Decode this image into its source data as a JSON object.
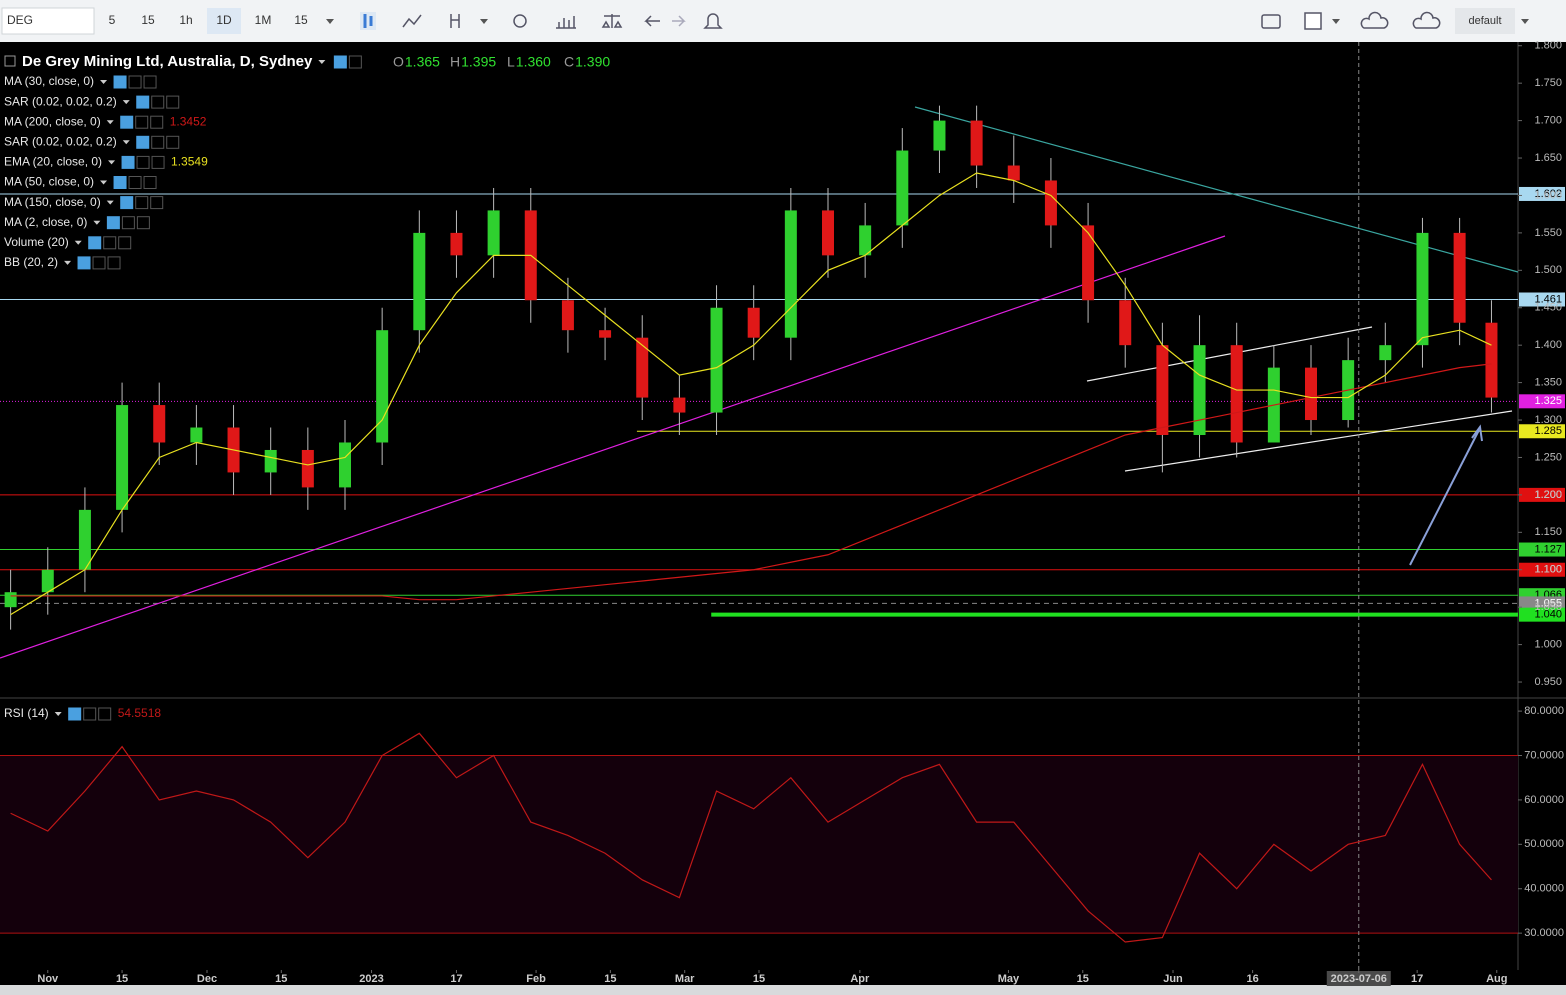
{
  "toolbar": {
    "symbol": "DEG",
    "intervals": [
      "5",
      "15",
      "1h",
      "1D",
      "1M",
      "15"
    ],
    "active_interval": 3,
    "layout": "default"
  },
  "chart_data": [
    {
      "type": "candlestick",
      "title": "De Grey Mining Ltd, Australia, D, Sydney",
      "ohlc": [
        {
          "key": "O",
          "value": "1.365"
        },
        {
          "key": "H",
          "value": "1.395"
        },
        {
          "key": "L",
          "value": "1.360"
        },
        {
          "key": "C",
          "value": "1.390"
        }
      ],
      "up_color": "#2fd02f",
      "down_color": "#e01818",
      "xlim": [
        "2022-10-23",
        "2023-08-05"
      ],
      "xticks": [
        {
          "value": "2022-11-01",
          "label": "Nov"
        },
        {
          "value": "2022-11-15",
          "label": "15"
        },
        {
          "value": "2022-12-01",
          "label": "Dec"
        },
        {
          "value": "2022-12-15",
          "label": "15"
        },
        {
          "value": "2023-01-01",
          "label": "2023"
        },
        {
          "value": "2023-01-17",
          "label": "17"
        },
        {
          "value": "2023-02-01",
          "label": "Feb"
        },
        {
          "value": "2023-02-15",
          "label": "15"
        },
        {
          "value": "2023-03-01",
          "label": "Mar"
        },
        {
          "value": "2023-03-15",
          "label": "15"
        },
        {
          "value": "2023-04-03",
          "label": "Apr"
        },
        {
          "value": "2023-05-01",
          "label": "May"
        },
        {
          "value": "2023-05-15",
          "label": "15"
        },
        {
          "value": "2023-06-01",
          "label": "Jun"
        },
        {
          "value": "2023-06-16",
          "label": "16"
        },
        {
          "value": "2023-07-06",
          "label": "2023-07-06",
          "highlight": true
        },
        {
          "value": "2023-07-17",
          "label": "17"
        },
        {
          "value": "2023-08-01",
          "label": "Aug"
        }
      ],
      "ylim": [
        0.93,
        1.805
      ],
      "yticks": [
        {
          "value": 1.8,
          "label": "1.800"
        },
        {
          "value": 1.75,
          "label": "1.750"
        },
        {
          "value": 1.7,
          "label": "1.700"
        },
        {
          "value": 1.65,
          "label": "1.650"
        },
        {
          "value": 1.6,
          "label": "1.600"
        },
        {
          "value": 1.55,
          "label": "1.550"
        },
        {
          "value": 1.5,
          "label": "1.500"
        },
        {
          "value": 1.45,
          "label": "1.450"
        },
        {
          "value": 1.4,
          "label": "1.400"
        },
        {
          "value": 1.35,
          "label": "1.350"
        },
        {
          "value": 1.3,
          "label": "1.300"
        },
        {
          "value": 1.25,
          "label": "1.250"
        },
        {
          "value": 1.2,
          "label": "1.200"
        },
        {
          "value": 1.15,
          "label": "1.150"
        },
        {
          "value": 1.1,
          "label": "1.100"
        },
        {
          "value": 1.05,
          "label": "1.050"
        },
        {
          "value": 1.0,
          "label": "1.000"
        },
        {
          "value": 0.95,
          "label": "0.950"
        }
      ],
      "levels": [
        {
          "value": 1.602,
          "label": "1.602",
          "color": "#a8d8f0",
          "label_color": "#000"
        },
        {
          "value": 1.461,
          "label": "1.461",
          "color": "#a8d8f0",
          "label_color": "#000"
        },
        {
          "value": 1.325,
          "label": "1.325",
          "color": "#e020e0",
          "label_color": "#fff",
          "style": "dotted"
        },
        {
          "value": 1.285,
          "label": "1.285",
          "color": "#e8e820",
          "label_color": "#000",
          "from": "2023-02-20"
        },
        {
          "value": 1.2,
          "label": "1.200",
          "color": "#e01010",
          "label_color": "#fff"
        },
        {
          "value": 1.127,
          "label": "1.127",
          "color": "#30d030",
          "label_color": "#000"
        },
        {
          "value": 1.1,
          "label": "1.100",
          "color": "#e01010",
          "label_color": "#fff"
        },
        {
          "value": 1.066,
          "label": "1.066",
          "color": "#30d030",
          "label_color": "#000"
        },
        {
          "value": 1.055,
          "label": "1.055",
          "color": "#888",
          "label_color": "#fff",
          "style": "dashed"
        },
        {
          "value": 1.04,
          "label": "1.040",
          "color": "#20e020",
          "label_color": "#000",
          "from": "2023-03-06",
          "width": 4
        }
      ],
      "x": [
        "2022-10-25",
        "2022-11-01",
        "2022-11-08",
        "2022-11-15",
        "2022-11-22",
        "2022-11-29",
        "2022-12-06",
        "2022-12-13",
        "2022-12-20",
        "2022-12-27",
        "2023-01-03",
        "2023-01-10",
        "2023-01-17",
        "2023-01-24",
        "2023-01-31",
        "2023-02-07",
        "2023-02-14",
        "2023-02-21",
        "2023-02-28",
        "2023-03-07",
        "2023-03-14",
        "2023-03-21",
        "2023-03-28",
        "2023-04-04",
        "2023-04-11",
        "2023-04-18",
        "2023-04-25",
        "2023-05-02",
        "2023-05-09",
        "2023-05-16",
        "2023-05-23",
        "2023-05-30",
        "2023-06-06",
        "2023-06-13",
        "2023-06-20",
        "2023-06-27",
        "2023-07-04",
        "2023-07-11",
        "2023-07-18",
        "2023-07-25",
        "2023-07-31"
      ],
      "open": [
        1.05,
        1.07,
        1.1,
        1.18,
        1.32,
        1.27,
        1.29,
        1.23,
        1.26,
        1.21,
        1.27,
        1.42,
        1.55,
        1.52,
        1.58,
        1.46,
        1.42,
        1.41,
        1.33,
        1.31,
        1.45,
        1.41,
        1.58,
        1.52,
        1.56,
        1.66,
        1.7,
        1.64,
        1.62,
        1.56,
        1.46,
        1.4,
        1.28,
        1.4,
        1.27,
        1.37,
        1.3,
        1.38,
        1.4,
        1.55,
        1.43
      ],
      "high": [
        1.1,
        1.13,
        1.21,
        1.35,
        1.35,
        1.32,
        1.32,
        1.29,
        1.29,
        1.3,
        1.45,
        1.58,
        1.58,
        1.61,
        1.61,
        1.49,
        1.45,
        1.44,
        1.36,
        1.48,
        1.48,
        1.61,
        1.61,
        1.59,
        1.69,
        1.72,
        1.72,
        1.68,
        1.65,
        1.59,
        1.49,
        1.43,
        1.44,
        1.43,
        1.4,
        1.4,
        1.41,
        1.43,
        1.57,
        1.57,
        1.46
      ],
      "low": [
        1.02,
        1.04,
        1.07,
        1.15,
        1.24,
        1.24,
        1.2,
        1.2,
        1.18,
        1.18,
        1.24,
        1.39,
        1.49,
        1.49,
        1.43,
        1.39,
        1.38,
        1.3,
        1.28,
        1.28,
        1.38,
        1.38,
        1.49,
        1.49,
        1.53,
        1.63,
        1.61,
        1.59,
        1.53,
        1.43,
        1.37,
        1.23,
        1.25,
        1.25,
        1.27,
        1.28,
        1.29,
        1.35,
        1.37,
        1.4,
        1.31
      ],
      "close": [
        1.07,
        1.1,
        1.18,
        1.32,
        1.27,
        1.29,
        1.23,
        1.26,
        1.21,
        1.27,
        1.42,
        1.55,
        1.52,
        1.58,
        1.46,
        1.42,
        1.41,
        1.33,
        1.31,
        1.45,
        1.41,
        1.58,
        1.52,
        1.56,
        1.66,
        1.7,
        1.64,
        1.62,
        1.56,
        1.46,
        1.4,
        1.28,
        1.4,
        1.27,
        1.37,
        1.3,
        1.38,
        1.4,
        1.55,
        1.43,
        1.33
      ],
      "series": [
        {
          "name": "MA (30, close, 0)"
        },
        {
          "name": "SAR (0.02, 0.02, 0.2)"
        },
        {
          "name": "MA (200, close, 0)",
          "last": "1.3452",
          "color": "#d01818",
          "values": [
            1.065,
            1.065,
            1.065,
            1.065,
            1.065,
            1.065,
            1.065,
            1.065,
            1.065,
            1.065,
            1.065,
            1.06,
            1.06,
            1.065,
            1.07,
            1.075,
            1.08,
            1.085,
            1.09,
            1.095,
            1.1,
            1.11,
            1.12,
            1.14,
            1.16,
            1.18,
            1.2,
            1.22,
            1.24,
            1.26,
            1.28,
            1.29,
            1.3,
            1.31,
            1.32,
            1.33,
            1.34,
            1.35,
            1.36,
            1.37,
            1.375
          ]
        },
        {
          "name": "SAR (0.02, 0.02, 0.2)"
        },
        {
          "name": "EMA (20, close, 0)",
          "last": "1.3549",
          "color": "#e8e020",
          "values": [
            1.04,
            1.07,
            1.1,
            1.18,
            1.25,
            1.27,
            1.26,
            1.25,
            1.24,
            1.25,
            1.3,
            1.4,
            1.47,
            1.52,
            1.52,
            1.48,
            1.44,
            1.4,
            1.36,
            1.37,
            1.4,
            1.45,
            1.5,
            1.52,
            1.56,
            1.6,
            1.63,
            1.62,
            1.6,
            1.55,
            1.48,
            1.4,
            1.36,
            1.34,
            1.34,
            1.33,
            1.33,
            1.36,
            1.41,
            1.42,
            1.4
          ]
        },
        {
          "name": "MA (50, close, 0)"
        },
        {
          "name": "MA (150, close, 0)"
        },
        {
          "name": "MA (2, close, 0)"
        },
        {
          "name": "Volume (20)"
        },
        {
          "name": "BB (20, 2)"
        }
      ]
    },
    {
      "type": "line",
      "name": "RSI (14)",
      "last": "54.5518",
      "color": "#c01818",
      "ylim": [
        21.7,
        82.5
      ],
      "yticks": [
        {
          "value": 80,
          "label": "80.0000"
        },
        {
          "value": 70,
          "label": "70.0000"
        },
        {
          "value": 60,
          "label": "60.0000"
        },
        {
          "value": 50,
          "label": "50.0000"
        },
        {
          "value": 40,
          "label": "40.0000"
        },
        {
          "value": 30,
          "label": "30.0000"
        }
      ],
      "band": [
        70,
        30
      ],
      "values": [
        57,
        53,
        62,
        72,
        60,
        62,
        60,
        55,
        47,
        55,
        70,
        75,
        65,
        70,
        55,
        52,
        48,
        42,
        38,
        62,
        58,
        65,
        55,
        60,
        65,
        68,
        55,
        55,
        45,
        35,
        28,
        29,
        48,
        40,
        50,
        44,
        50,
        52,
        68,
        50,
        42
      ]
    }
  ]
}
